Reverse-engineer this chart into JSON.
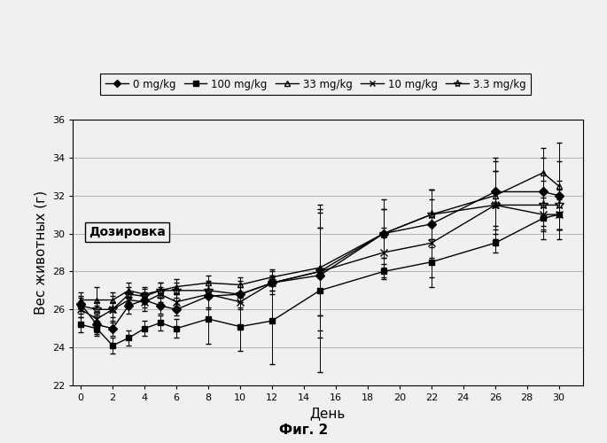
{
  "xlabel": "День",
  "ylabel": "Вес животных (г)",
  "figcaption": "Фиг. 2",
  "annotation": "Дозировка",
  "ylim": [
    22.0,
    36.0
  ],
  "yticks": [
    22.0,
    24.0,
    26.0,
    28.0,
    30.0,
    32.0,
    34.0,
    36.0
  ],
  "xlim": [
    -0.5,
    31.5
  ],
  "xticks": [
    0,
    2,
    4,
    6,
    8,
    10,
    12,
    14,
    16,
    18,
    20,
    22,
    24,
    26,
    28,
    30
  ],
  "series": [
    {
      "label": "0 mg/kg",
      "marker": "D",
      "markersize": 5,
      "x": [
        0,
        1,
        2,
        3,
        4,
        5,
        6,
        8,
        10,
        12,
        15,
        19,
        22,
        26,
        29,
        30
      ],
      "y": [
        26.3,
        25.2,
        25.0,
        26.2,
        26.5,
        26.2,
        26.0,
        26.7,
        26.8,
        27.4,
        27.8,
        30.0,
        30.5,
        32.2,
        32.2,
        32.0
      ],
      "yerr_lo": [
        0.4,
        0.5,
        0.4,
        0.4,
        0.4,
        0.4,
        0.3,
        0.7,
        0.7,
        0.6,
        3.3,
        1.8,
        1.8,
        1.8,
        1.8,
        1.8
      ],
      "yerr_hi": [
        0.4,
        0.5,
        0.4,
        0.4,
        0.4,
        0.4,
        0.3,
        0.7,
        0.7,
        0.6,
        3.3,
        1.8,
        1.8,
        1.8,
        1.8,
        1.8
      ]
    },
    {
      "label": "100 mg/kg",
      "marker": "s",
      "markersize": 5,
      "x": [
        0,
        1,
        2,
        3,
        4,
        5,
        6,
        8,
        10,
        12,
        15,
        19,
        22,
        26,
        29,
        30
      ],
      "y": [
        25.2,
        25.0,
        24.1,
        24.5,
        25.0,
        25.3,
        25.0,
        25.5,
        25.1,
        25.4,
        27.0,
        28.0,
        28.5,
        29.5,
        30.8,
        31.0
      ],
      "yerr_lo": [
        0.4,
        0.4,
        0.4,
        0.4,
        0.4,
        0.4,
        0.5,
        1.3,
        1.3,
        2.3,
        4.3,
        0.4,
        0.8,
        0.5,
        0.7,
        0.8
      ],
      "yerr_hi": [
        0.4,
        0.4,
        0.4,
        0.4,
        0.4,
        0.4,
        0.5,
        1.3,
        1.3,
        2.3,
        4.3,
        0.4,
        0.8,
        0.5,
        0.7,
        0.8
      ]
    },
    {
      "label": "33 mg/kg",
      "marker": "^",
      "markersize": 5,
      "x": [
        0,
        1,
        2,
        3,
        4,
        5,
        6,
        8,
        10,
        12,
        15,
        19,
        22,
        26,
        29,
        30
      ],
      "y": [
        26.5,
        26.5,
        26.5,
        27.0,
        26.8,
        27.0,
        27.2,
        27.4,
        27.3,
        27.7,
        28.2,
        30.0,
        31.0,
        32.0,
        33.2,
        32.5
      ],
      "yerr_lo": [
        0.4,
        0.7,
        0.4,
        0.4,
        0.4,
        0.4,
        0.4,
        0.4,
        0.4,
        0.4,
        3.3,
        1.3,
        1.3,
        1.8,
        1.3,
        2.3
      ],
      "yerr_hi": [
        0.4,
        0.7,
        0.4,
        0.4,
        0.4,
        0.4,
        0.4,
        0.4,
        0.4,
        0.4,
        3.3,
        1.3,
        1.3,
        1.8,
        1.3,
        2.3
      ]
    },
    {
      "label": "10 mg/kg",
      "marker": "x",
      "markersize": 6,
      "x": [
        0,
        1,
        2,
        3,
        4,
        5,
        6,
        8,
        10,
        12,
        15,
        19,
        22,
        26,
        29,
        30
      ],
      "y": [
        26.0,
        25.5,
        26.0,
        26.5,
        26.4,
        26.8,
        26.4,
        26.8,
        26.4,
        27.4,
        28.0,
        29.0,
        29.5,
        31.5,
        31.0,
        31.0
      ],
      "yerr_lo": [
        0.4,
        0.7,
        0.7,
        0.4,
        0.5,
        0.4,
        0.4,
        0.7,
        0.4,
        0.4,
        2.3,
        1.3,
        2.3,
        1.8,
        1.3,
        1.3
      ],
      "yerr_hi": [
        0.4,
        0.7,
        0.7,
        0.4,
        0.5,
        0.4,
        0.4,
        0.7,
        0.4,
        0.4,
        2.3,
        1.3,
        2.3,
        1.8,
        1.3,
        1.3
      ]
    },
    {
      "label": "3.3 mg/kg",
      "marker": "*",
      "markersize": 7,
      "x": [
        0,
        1,
        2,
        3,
        4,
        5,
        6,
        8,
        10,
        12,
        15,
        19,
        22,
        26,
        29,
        30
      ],
      "y": [
        26.2,
        26.0,
        26.0,
        26.8,
        26.7,
        27.0,
        27.0,
        27.0,
        26.8,
        27.4,
        28.0,
        30.0,
        31.0,
        31.5,
        31.5,
        31.5
      ],
      "yerr_lo": [
        0.4,
        0.4,
        0.4,
        0.4,
        0.4,
        0.4,
        0.4,
        0.4,
        0.4,
        0.4,
        2.3,
        1.3,
        1.3,
        1.8,
        1.3,
        1.3
      ],
      "yerr_hi": [
        0.4,
        0.4,
        0.4,
        0.4,
        0.4,
        0.4,
        0.4,
        0.4,
        0.4,
        0.4,
        2.3,
        1.3,
        1.3,
        1.8,
        1.3,
        1.3
      ]
    }
  ],
  "background_color": "#f0f0f0",
  "grid_color": "#aaaaaa"
}
